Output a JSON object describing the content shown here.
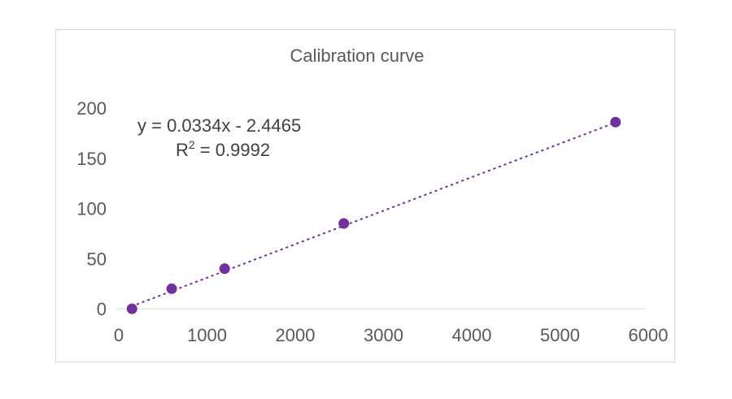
{
  "chart_data": {
    "type": "scatter",
    "title": "Calibration curve",
    "xlabel": "",
    "ylabel": "",
    "xlim": [
      0,
      6000
    ],
    "ylim": [
      0,
      200
    ],
    "x_ticks": [
      "0",
      "1000",
      "2000",
      "3000",
      "4000",
      "5000",
      "6000"
    ],
    "y_ticks": [
      "0",
      "50",
      "100",
      "150",
      "200"
    ],
    "grid": false,
    "legend": "none",
    "series": [
      {
        "x": [
          150,
          600,
          1200,
          2550,
          5630
        ],
        "y": [
          0,
          20,
          40,
          85,
          186
        ],
        "color": "#7030a0"
      }
    ],
    "trendline": {
      "type": "linear",
      "slope": 0.0334,
      "intercept": -2.4465,
      "style": "dotted",
      "color": "#7030a0",
      "equation_label": "y = 0.0334x - 2.4465",
      "r2_prefix": "R",
      "r2_sup": "2",
      "r2_suffix": " = 0.9992"
    }
  }
}
